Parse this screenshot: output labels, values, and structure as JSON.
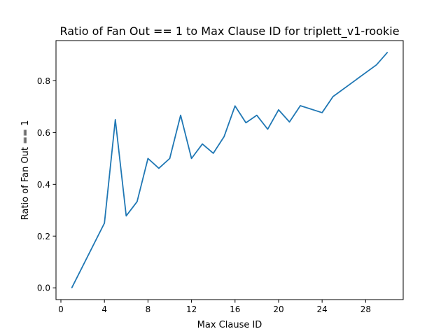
{
  "chart_data": {
    "type": "line",
    "title": "Ratio of Fan Out == 1 to Max Clause ID for triplett_v1-rookie",
    "xlabel": "Max Clause ID",
    "ylabel": "Ratio of Fan Out == 1",
    "xlim": [
      -0.45,
      31.45
    ],
    "ylim": [
      -0.0455,
      0.9555
    ],
    "xticks": [
      0,
      4,
      8,
      12,
      16,
      20,
      24,
      28
    ],
    "xtick_labels": [
      "0",
      "4",
      "8",
      "12",
      "16",
      "20",
      "24",
      "28"
    ],
    "yticks": [
      0.0,
      0.2,
      0.4,
      0.6,
      0.8
    ],
    "ytick_labels": [
      "0.0",
      "0.2",
      "0.4",
      "0.6",
      "0.8"
    ],
    "grid": false,
    "line_color": "#1f77b4",
    "series": [
      {
        "x": [
          1,
          4,
          5,
          6,
          7,
          8,
          9,
          10,
          11,
          12,
          13,
          14,
          15,
          16,
          17,
          18,
          19,
          20,
          21,
          22,
          24,
          25,
          29,
          30
        ],
        "y": [
          0.0,
          0.25,
          0.65,
          0.278,
          0.333,
          0.5,
          0.462,
          0.5,
          0.667,
          0.5,
          0.556,
          0.52,
          0.585,
          0.703,
          0.638,
          0.667,
          0.613,
          0.688,
          0.641,
          0.704,
          0.677,
          0.739,
          0.862,
          0.91
        ]
      }
    ]
  }
}
